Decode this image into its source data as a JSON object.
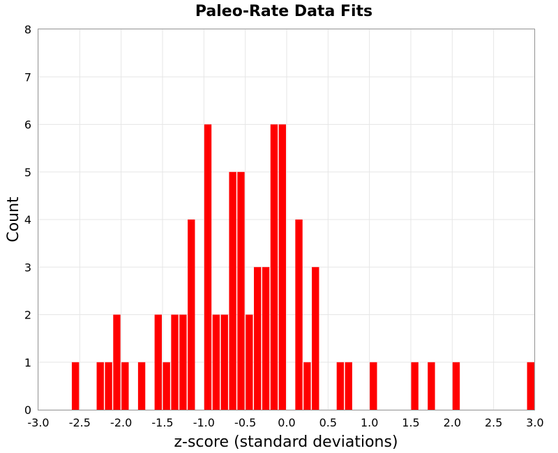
{
  "chart_data": {
    "type": "bar",
    "title": "Paleo-Rate Data Fits",
    "xlabel": "z-score (standard deviations)",
    "ylabel": "Count",
    "xlim": [
      -3.0,
      3.0
    ],
    "ylim": [
      0,
      8
    ],
    "xticks": [
      "-3.0",
      "-2.5",
      "-2.0",
      "-1.5",
      "-1.0",
      "-0.5",
      "0.0",
      "0.5",
      "1.0",
      "1.5",
      "2.0",
      "2.5",
      "3.0"
    ],
    "yticks": [
      "0",
      "1",
      "2",
      "3",
      "4",
      "5",
      "6",
      "7",
      "8"
    ],
    "bin_width": 0.1,
    "grid": true,
    "bar_color": "#ff0000",
    "bins": [
      {
        "x": -2.55,
        "count": 1
      },
      {
        "x": -2.25,
        "count": 1
      },
      {
        "x": -2.15,
        "count": 1
      },
      {
        "x": -2.05,
        "count": 2
      },
      {
        "x": -1.95,
        "count": 1
      },
      {
        "x": -1.75,
        "count": 1
      },
      {
        "x": -1.55,
        "count": 2
      },
      {
        "x": -1.45,
        "count": 1
      },
      {
        "x": -1.35,
        "count": 2
      },
      {
        "x": -1.25,
        "count": 2
      },
      {
        "x": -1.15,
        "count": 4
      },
      {
        "x": -0.95,
        "count": 6
      },
      {
        "x": -0.85,
        "count": 2
      },
      {
        "x": -0.75,
        "count": 2
      },
      {
        "x": -0.65,
        "count": 5
      },
      {
        "x": -0.55,
        "count": 5
      },
      {
        "x": -0.45,
        "count": 2
      },
      {
        "x": -0.35,
        "count": 3
      },
      {
        "x": -0.25,
        "count": 3
      },
      {
        "x": -0.15,
        "count": 6
      },
      {
        "x": -0.05,
        "count": 6
      },
      {
        "x": 0.15,
        "count": 4
      },
      {
        "x": 0.25,
        "count": 1
      },
      {
        "x": 0.35,
        "count": 3
      },
      {
        "x": 0.65,
        "count": 1
      },
      {
        "x": 0.75,
        "count": 1
      },
      {
        "x": 1.05,
        "count": 1
      },
      {
        "x": 1.55,
        "count": 1
      },
      {
        "x": 1.75,
        "count": 1
      },
      {
        "x": 2.05,
        "count": 1
      },
      {
        "x": 2.95,
        "count": 1
      }
    ]
  }
}
